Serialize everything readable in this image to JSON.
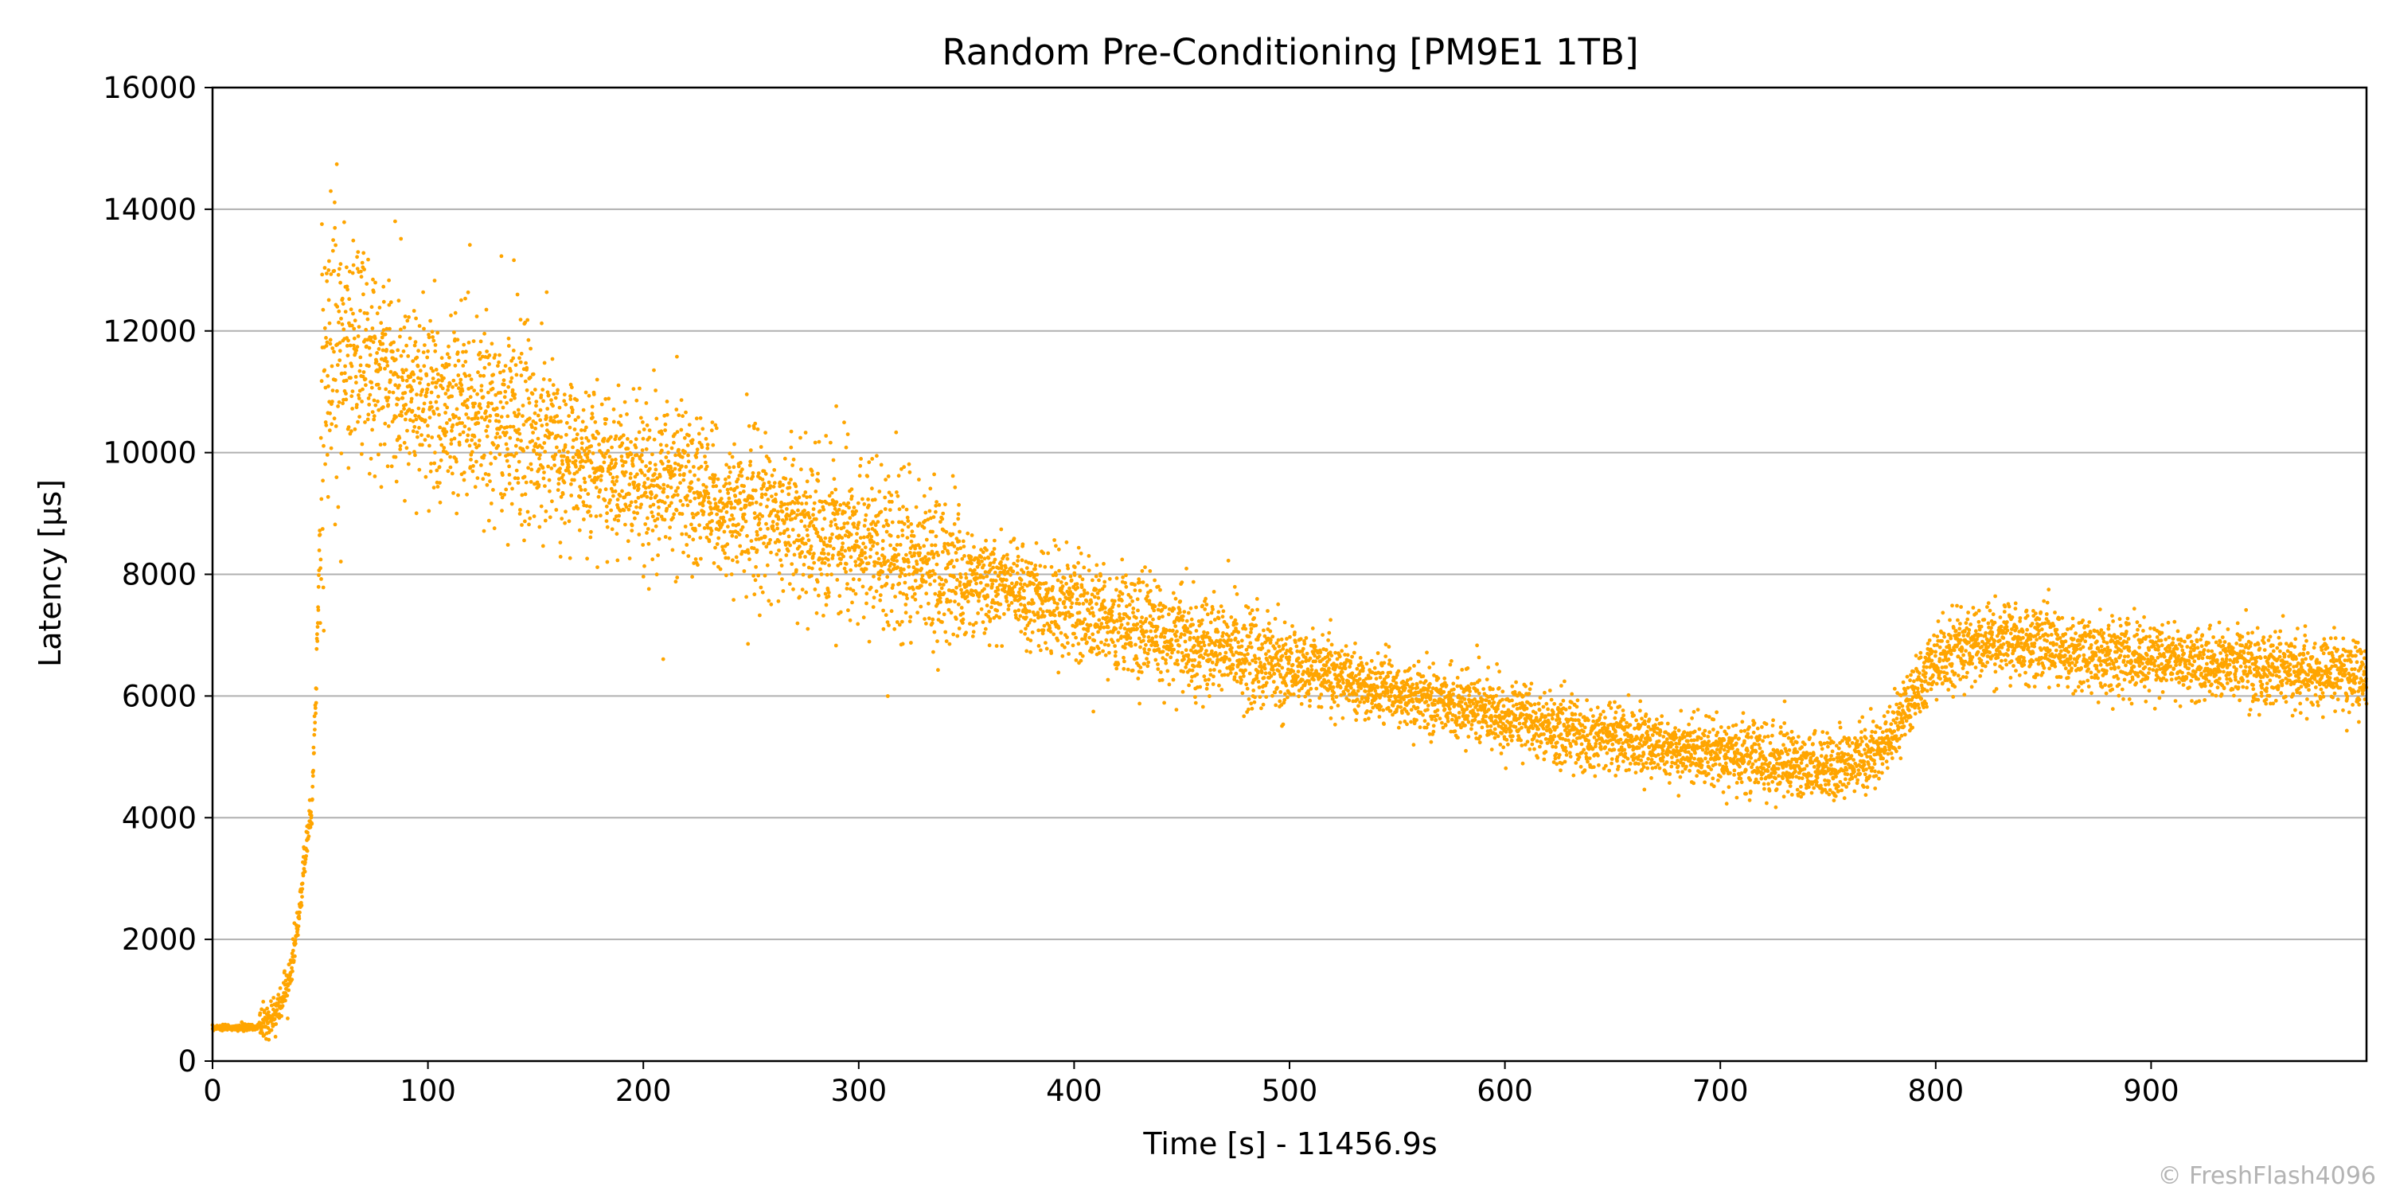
{
  "chart_data": {
    "type": "scatter",
    "title": "Random Pre-Conditioning [PM9E1 1TB]",
    "xlabel": "Time [s] - 11456.9s",
    "ylabel": "Latency [µs]",
    "xlim": [
      0,
      1000
    ],
    "ylim": [
      0,
      16000
    ],
    "x_ticks": [
      0,
      100,
      200,
      300,
      400,
      500,
      600,
      700,
      800,
      900
    ],
    "y_ticks": [
      0,
      2000,
      4000,
      6000,
      8000,
      10000,
      12000,
      14000,
      16000
    ],
    "grid": "horizontal",
    "legend": "none",
    "marker_color": "#ffa500",
    "series": [
      {
        "x": [
          0,
          5,
          10,
          15,
          20,
          25,
          30,
          33,
          36,
          38,
          40,
          42,
          44,
          46,
          48,
          50,
          52,
          54,
          57,
          60,
          65,
          70,
          80,
          90,
          100,
          110,
          120,
          130,
          140,
          150,
          160,
          170,
          180,
          190,
          200,
          210,
          220,
          230,
          240,
          250,
          260,
          270,
          280,
          290,
          300,
          310,
          320,
          330,
          340,
          350,
          360,
          370,
          380,
          390,
          400,
          410,
          420,
          430,
          440,
          450,
          460,
          470,
          480,
          490,
          500,
          510,
          520,
          530,
          540,
          550,
          560,
          570,
          580,
          590,
          600,
          610,
          620,
          630,
          640,
          650,
          660,
          670,
          680,
          690,
          700,
          710,
          720,
          730,
          740,
          750,
          760,
          770,
          780,
          785,
          790,
          795,
          800,
          810,
          820,
          830,
          840,
          850,
          860,
          870,
          880,
          890,
          900,
          910,
          920,
          930,
          940,
          950,
          960,
          970,
          980,
          990,
          1000
        ],
        "values": [
          550,
          550,
          550,
          550,
          550,
          650,
          800,
          1100,
          1400,
          1900,
          2300,
          3000,
          3700,
          4200,
          6000,
          9000,
          11000,
          11500,
          11800,
          11800,
          11700,
          11600,
          11300,
          11000,
          10900,
          10800,
          10700,
          10600,
          10400,
          10200,
          10100,
          9900,
          9800,
          9700,
          9600,
          9500,
          9400,
          9300,
          9100,
          9000,
          8900,
          8800,
          8700,
          8600,
          8500,
          8400,
          8300,
          8200,
          8100,
          7950,
          7850,
          7750,
          7650,
          7550,
          7450,
          7350,
          7250,
          7150,
          7050,
          6950,
          6850,
          6800,
          6700,
          6600,
          6500,
          6450,
          6350,
          6250,
          6150,
          6050,
          6000,
          5900,
          5850,
          5750,
          5700,
          5600,
          5500,
          5400,
          5350,
          5300,
          5250,
          5200,
          5150,
          5100,
          5050,
          5000,
          4950,
          4900,
          4850,
          4800,
          4850,
          5000,
          5400,
          5700,
          6000,
          6300,
          6600,
          6800,
          6950,
          6900,
          6850,
          6800,
          6750,
          6700,
          6650,
          6650,
          6600,
          6600,
          6550,
          6500,
          6500,
          6450,
          6450,
          6400,
          6400,
          6350,
          6350
        ]
      }
    ]
  },
  "watermark": "© FreshFlash4096"
}
